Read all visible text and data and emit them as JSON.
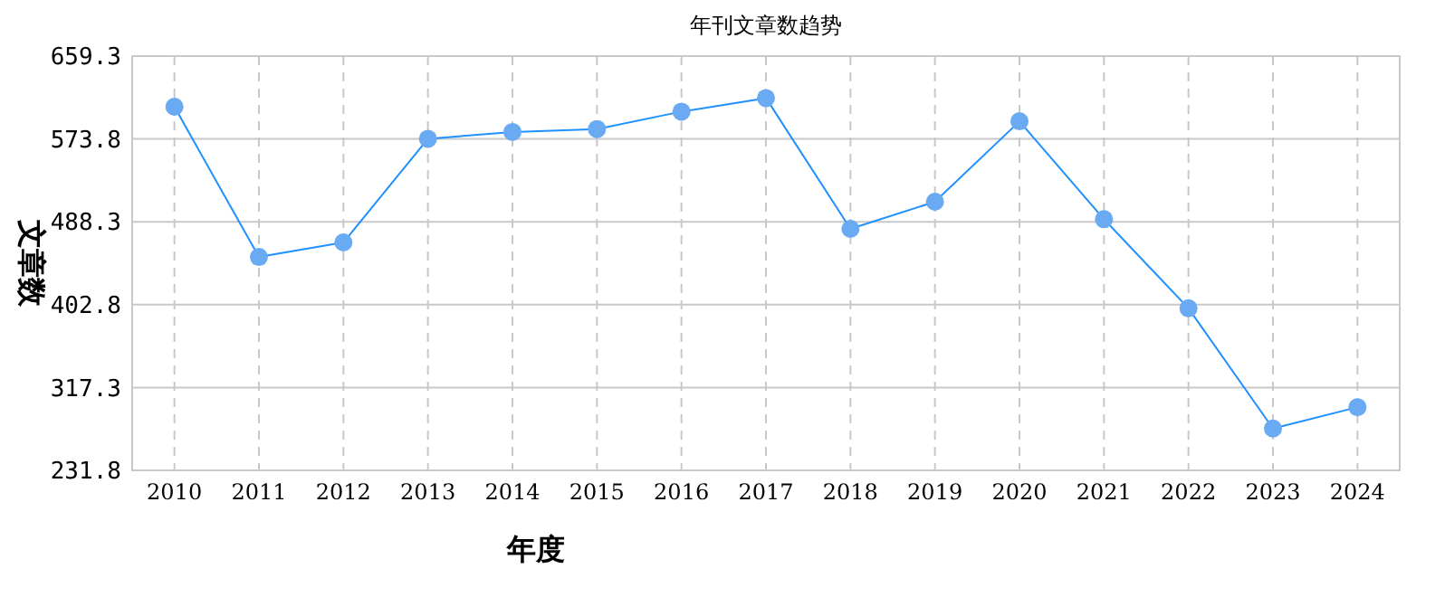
{
  "chart_data": {
    "type": "line",
    "title": "年刊文章数趋势",
    "xlabel": "年度",
    "ylabel": "文章数",
    "categories": [
      "2010",
      "2011",
      "2012",
      "2013",
      "2014",
      "2015",
      "2016",
      "2017",
      "2018",
      "2019",
      "2020",
      "2021",
      "2022",
      "2023",
      "2024"
    ],
    "series": [
      {
        "color": "#1e90ff",
        "values": [
          607,
          452,
          467,
          574,
          581,
          584,
          602,
          616,
          481,
          509,
          592,
          491,
          399,
          275,
          297
        ]
      }
    ],
    "ylim": [
      231.8,
      659.3
    ],
    "yticks": [
      231.8,
      317.3,
      402.8,
      488.3,
      573.8,
      659.3
    ],
    "grid": true,
    "marker": "circle",
    "line_style": "solid"
  }
}
